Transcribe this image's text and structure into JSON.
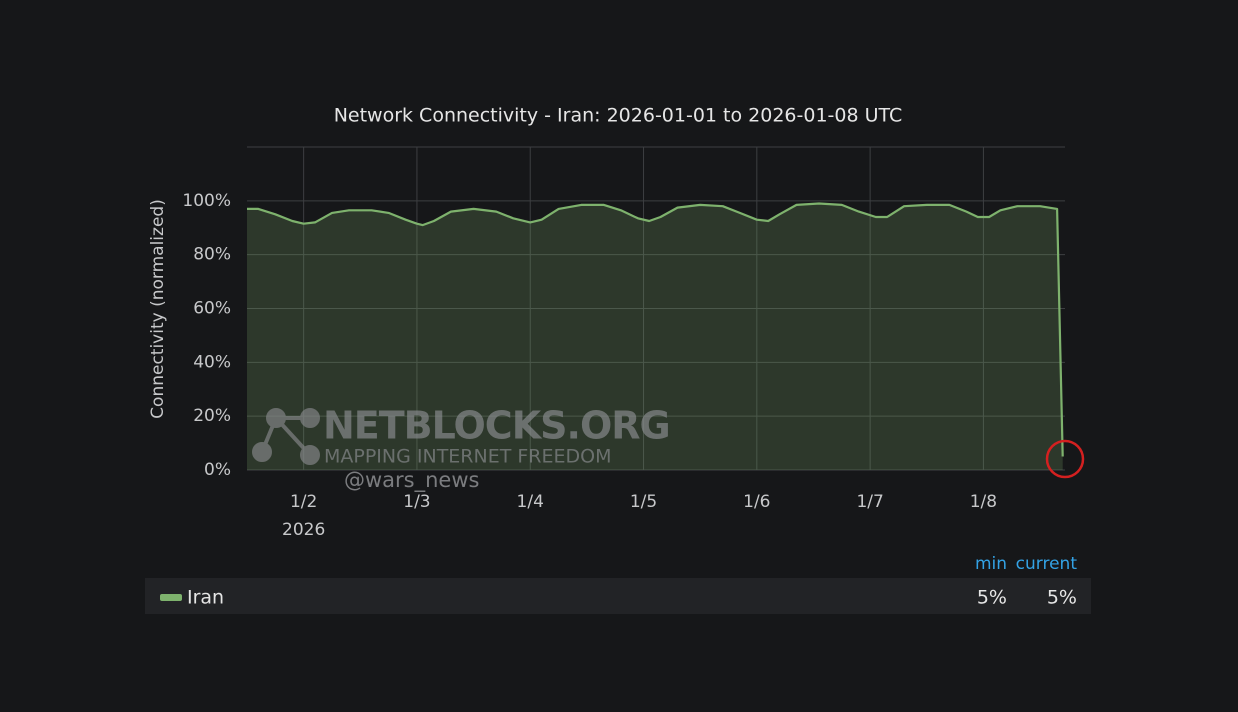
{
  "chart_data": {
    "type": "area",
    "title": "Network Connectivity - Iran: 2026-01-01 to 2026-01-08 UTC",
    "y_label": "Connectivity (normalized)",
    "x_year_label": "2026",
    "xlim": [
      1.5,
      8.72
    ],
    "xticks": [
      {
        "value": 2,
        "label": "1/2"
      },
      {
        "value": 3,
        "label": "1/3"
      },
      {
        "value": 4,
        "label": "1/4"
      },
      {
        "value": 5,
        "label": "1/5"
      },
      {
        "value": 6,
        "label": "1/6"
      },
      {
        "value": 7,
        "label": "1/7"
      },
      {
        "value": 8,
        "label": "1/8"
      }
    ],
    "ylim": [
      0,
      120
    ],
    "yticks": [
      {
        "value": 0,
        "label": "0%"
      },
      {
        "value": 20,
        "label": "20%"
      },
      {
        "value": 40,
        "label": "40%"
      },
      {
        "value": 60,
        "label": "60%"
      },
      {
        "value": 80,
        "label": "80%"
      },
      {
        "value": 100,
        "label": "100%"
      }
    ],
    "grid": true,
    "x": [
      1.5,
      1.6,
      1.75,
      1.9,
      2.0,
      2.1,
      2.25,
      2.4,
      2.6,
      2.75,
      2.9,
      3.0,
      3.05,
      3.15,
      3.3,
      3.5,
      3.7,
      3.85,
      4.0,
      4.1,
      4.25,
      4.45,
      4.65,
      4.8,
      4.95,
      5.05,
      5.15,
      5.3,
      5.5,
      5.7,
      5.85,
      6.0,
      6.1,
      6.2,
      6.35,
      6.55,
      6.75,
      6.9,
      7.05,
      7.15,
      7.3,
      7.5,
      7.7,
      7.85,
      7.95,
      8.05,
      8.15,
      8.3,
      8.5,
      8.65,
      8.7
    ],
    "series": [
      {
        "name": "Iran",
        "color": "#7eb26d",
        "values": [
          97,
          97,
          95,
          92.5,
          91.5,
          92,
          95.5,
          96.5,
          96.5,
          95.5,
          93,
          91.5,
          91,
          92.5,
          96,
          97,
          96,
          93.5,
          92,
          93,
          97,
          98.5,
          98.5,
          96.5,
          93.5,
          92.5,
          94,
          97.5,
          98.5,
          98,
          95.5,
          93,
          92.5,
          95,
          98.5,
          99,
          98.5,
          96,
          94,
          94,
          98,
          98.5,
          98.5,
          96,
          94,
          94,
          96.5,
          98,
          98,
          97,
          5
        ],
        "legend_values": [
          5,
          5
        ],
        "legend_value_labels": [
          "5%",
          "5%"
        ]
      }
    ],
    "legend_columns": [
      "min",
      "current"
    ],
    "watermark": {
      "brand": "NETBLOCKS.ORG",
      "tagline": "MAPPING INTERNET FREEDOM",
      "handle": "@wars_news"
    }
  }
}
